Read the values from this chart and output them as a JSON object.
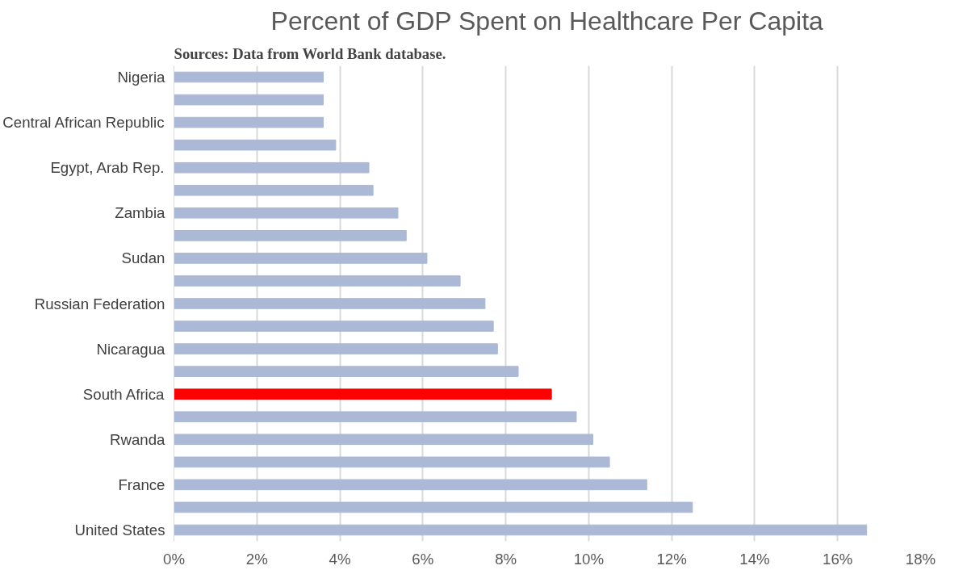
{
  "chart_data": {
    "type": "bar",
    "orientation": "horizontal",
    "title": "Percent of GDP Spent on Healthcare Per Capita",
    "annotations": [
      "Sources: Data from World Bank database."
    ],
    "categories": [
      "Nigeria",
      null,
      "Central African Republic",
      null,
      "Egypt, Arab Rep.",
      null,
      "Zambia",
      null,
      "Sudan",
      null,
      "Russian Federation",
      null,
      "Nicaragua",
      null,
      "South Africa",
      null,
      "Rwanda",
      null,
      "France",
      null,
      "United States"
    ],
    "values": [
      3.6,
      3.6,
      3.6,
      3.9,
      4.7,
      4.8,
      5.4,
      5.6,
      6.1,
      6.9,
      7.5,
      7.7,
      7.8,
      8.3,
      9.1,
      9.7,
      10.1,
      10.5,
      11.4,
      12.5,
      16.7
    ],
    "colors": [
      "#abb9d6",
      "#abb9d6",
      "#abb9d6",
      "#abb9d6",
      "#abb9d6",
      "#abb9d6",
      "#abb9d6",
      "#abb9d6",
      "#abb9d6",
      "#abb9d6",
      "#abb9d6",
      "#abb9d6",
      "#abb9d6",
      "#abb9d6",
      "#ff0000",
      "#abb9d6",
      "#abb9d6",
      "#abb9d6",
      "#abb9d6",
      "#abb9d6",
      "#abb9d6"
    ],
    "xlim": [
      0,
      18
    ],
    "xticks": [
      {
        "value": 0,
        "label": "0%"
      },
      {
        "value": 2,
        "label": "2%"
      },
      {
        "value": 4,
        "label": "4%"
      },
      {
        "value": 6,
        "label": "6%"
      },
      {
        "value": 8,
        "label": "8%"
      },
      {
        "value": 10,
        "label": "10%"
      },
      {
        "value": 12,
        "label": "12%"
      },
      {
        "value": 14,
        "label": "14%"
      },
      {
        "value": 16,
        "label": "16%"
      },
      {
        "value": 18,
        "label": "18%"
      }
    ],
    "grid": "x"
  }
}
